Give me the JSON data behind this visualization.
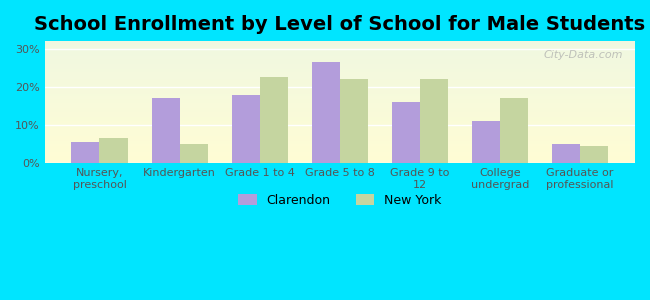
{
  "title": "School Enrollment by Level of School for Male Students",
  "categories": [
    "Nursery,\npreschool",
    "Kindergarten",
    "Grade 1 to 4",
    "Grade 5 to 8",
    "Grade 9 to\n12",
    "College\nundergrad",
    "Graduate or\nprofessional"
  ],
  "clarendon": [
    5.5,
    17.0,
    18.0,
    26.5,
    16.0,
    11.0,
    5.0
  ],
  "new_york": [
    6.5,
    5.0,
    22.5,
    22.0,
    22.0,
    17.0,
    4.5
  ],
  "clarendon_color": "#b39ddb",
  "new_york_color": "#c5d5a0",
  "background_color": "#00e5ff",
  "plot_bg_start": "#f0fff0",
  "plot_bg_end": "#fffff0",
  "yticks": [
    0,
    10,
    20,
    30
  ],
  "ylim": [
    0,
    32
  ],
  "ylabel_format": "%",
  "bar_width": 0.35,
  "legend_labels": [
    "Clarendon",
    "New York"
  ],
  "title_fontsize": 14,
  "tick_fontsize": 8,
  "legend_fontsize": 9,
  "watermark": "City-Data.com"
}
